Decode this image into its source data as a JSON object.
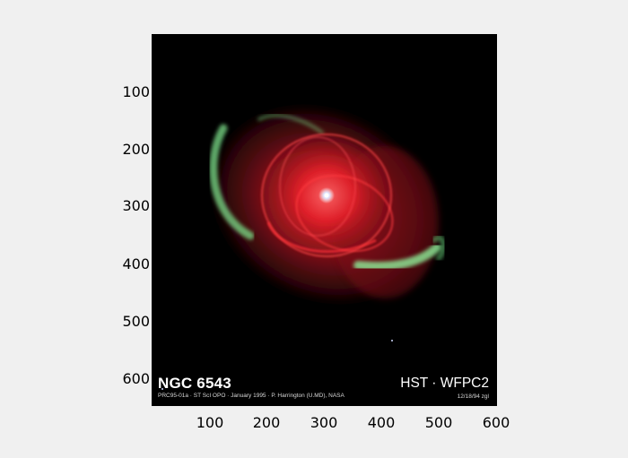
{
  "figure": {
    "background": "#f0f0f0",
    "image_background": "#000000",
    "subject": {
      "name_label": "NGC 6543",
      "credit_line": "PRC95-01a · ST ScI OPO · January 1995 · P. Harrington (U.MD), NASA",
      "instrument_label": "HST · WFPC2",
      "date_code": "12/18/94 zgl"
    },
    "axes": {
      "xlim": [
        0,
        600
      ],
      "ylim": [
        0,
        650
      ],
      "x_ticks": [
        "100",
        "200",
        "300",
        "400",
        "500",
        "600"
      ],
      "y_ticks": [
        "100",
        "200",
        "300",
        "400",
        "500",
        "600"
      ],
      "y_direction": "top-to-bottom",
      "grid": false
    },
    "colors": {
      "nebula_core": "#e8202a",
      "nebula_halo": "#6a0f14",
      "nebula_green": "#7de08a",
      "central_star": "#ffffff"
    }
  }
}
